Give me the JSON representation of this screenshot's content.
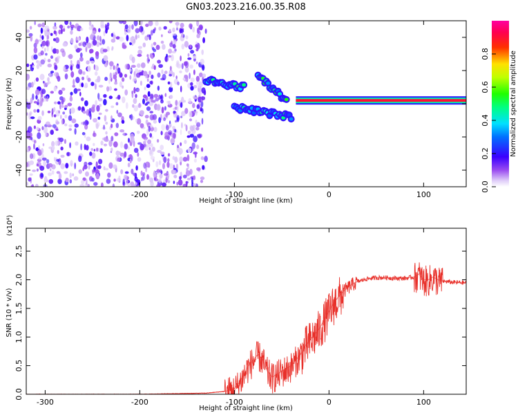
{
  "title": "GN03.2023.216.00.35.R08",
  "colors": {
    "line": "#e8302a",
    "blob_weak": "#b46cf2",
    "blob_strong": "#5a00f0"
  },
  "chart_data": [
    {
      "type": "heatmap",
      "xlabel": "Height of straight line (km)",
      "ylabel": "Frequency (Hz)",
      "xlim": [
        -320,
        145
      ],
      "ylim": [
        -50,
        50
      ],
      "xticks": [
        -300,
        -200,
        -100,
        0,
        100
      ],
      "xtick_labels": [
        "-300",
        "-200",
        "-100",
        "0",
        "100"
      ],
      "yticks": [
        -40,
        -20,
        0,
        20,
        40
      ],
      "ytick_labels": [
        "-40",
        "-20",
        "0",
        "20",
        "40"
      ],
      "colorbar": {
        "label": "Normalized spectral amplitude",
        "range": [
          0,
          1
        ],
        "ticks": [
          0.0,
          0.2,
          0.4,
          0.6,
          0.8
        ],
        "tick_labels": [
          "0.0",
          "0.2",
          "0.4",
          "0.6",
          "0.8"
        ],
        "colormap": "rainbow (white-purple-blue-cyan-green-yellow-red-magenta)"
      },
      "features": {
        "noise_region_x": [
          -320,
          -130
        ],
        "carrier_line": {
          "x": [
            -35,
            145
          ],
          "frequency": 2,
          "amplitude": 0.9
        },
        "upper_branch": {
          "x": [
            -130,
            -90
          ],
          "frequency": [
            14,
            10
          ]
        },
        "lower_branch": {
          "x": [
            -100,
            -40
          ],
          "frequency": [
            -2,
            -8
          ]
        },
        "inclined_branch": {
          "x": [
            -75,
            -45
          ],
          "frequency": [
            17,
            2
          ]
        }
      }
    },
    {
      "type": "line",
      "xlabel": "Height of straight line (km)",
      "ylabel": "SNR (10 * v/v)",
      "multiplier": "(x10⁴)",
      "xlim": [
        -320,
        145
      ],
      "ylim": [
        0,
        2.9
      ],
      "xticks": [
        -300,
        -200,
        -100,
        0,
        100
      ],
      "xtick_labels": [
        "-300",
        "-200",
        "-100",
        "0",
        "100"
      ],
      "yticks": [
        0.0,
        0.5,
        1.0,
        1.5,
        2.0,
        2.5
      ],
      "ytick_labels": [
        "0.0",
        "0.5",
        "1.0",
        "1.5",
        "2.0",
        "2.5"
      ],
      "series": [
        {
          "x": [
            -320,
            -200,
            -130,
            -110,
            -100,
            -95,
            -90,
            -85,
            -80,
            -75,
            -70,
            -65,
            -60,
            -55,
            -50,
            -45,
            -40,
            -35,
            -30,
            -25,
            -20,
            -15,
            -10,
            -5,
            0,
            5,
            10,
            15,
            20,
            25,
            30,
            40,
            50,
            60,
            70,
            80,
            90,
            95,
            100,
            105,
            110,
            115,
            120,
            130,
            145
          ],
          "y": [
            0.0,
            0.0,
            0.02,
            0.05,
            0.1,
            0.2,
            0.35,
            0.5,
            0.6,
            0.7,
            0.6,
            0.4,
            0.3,
            0.35,
            0.4,
            0.45,
            0.5,
            0.6,
            0.7,
            0.85,
            0.95,
            1.05,
            1.15,
            1.3,
            1.45,
            1.6,
            1.7,
            1.8,
            1.87,
            1.93,
            1.97,
            2.02,
            2.04,
            2.04,
            2.03,
            2.03,
            2.05,
            2.1,
            2.0,
            2.0,
            2.05,
            2.0,
            1.98,
            1.96,
            1.95
          ]
        }
      ]
    }
  ]
}
